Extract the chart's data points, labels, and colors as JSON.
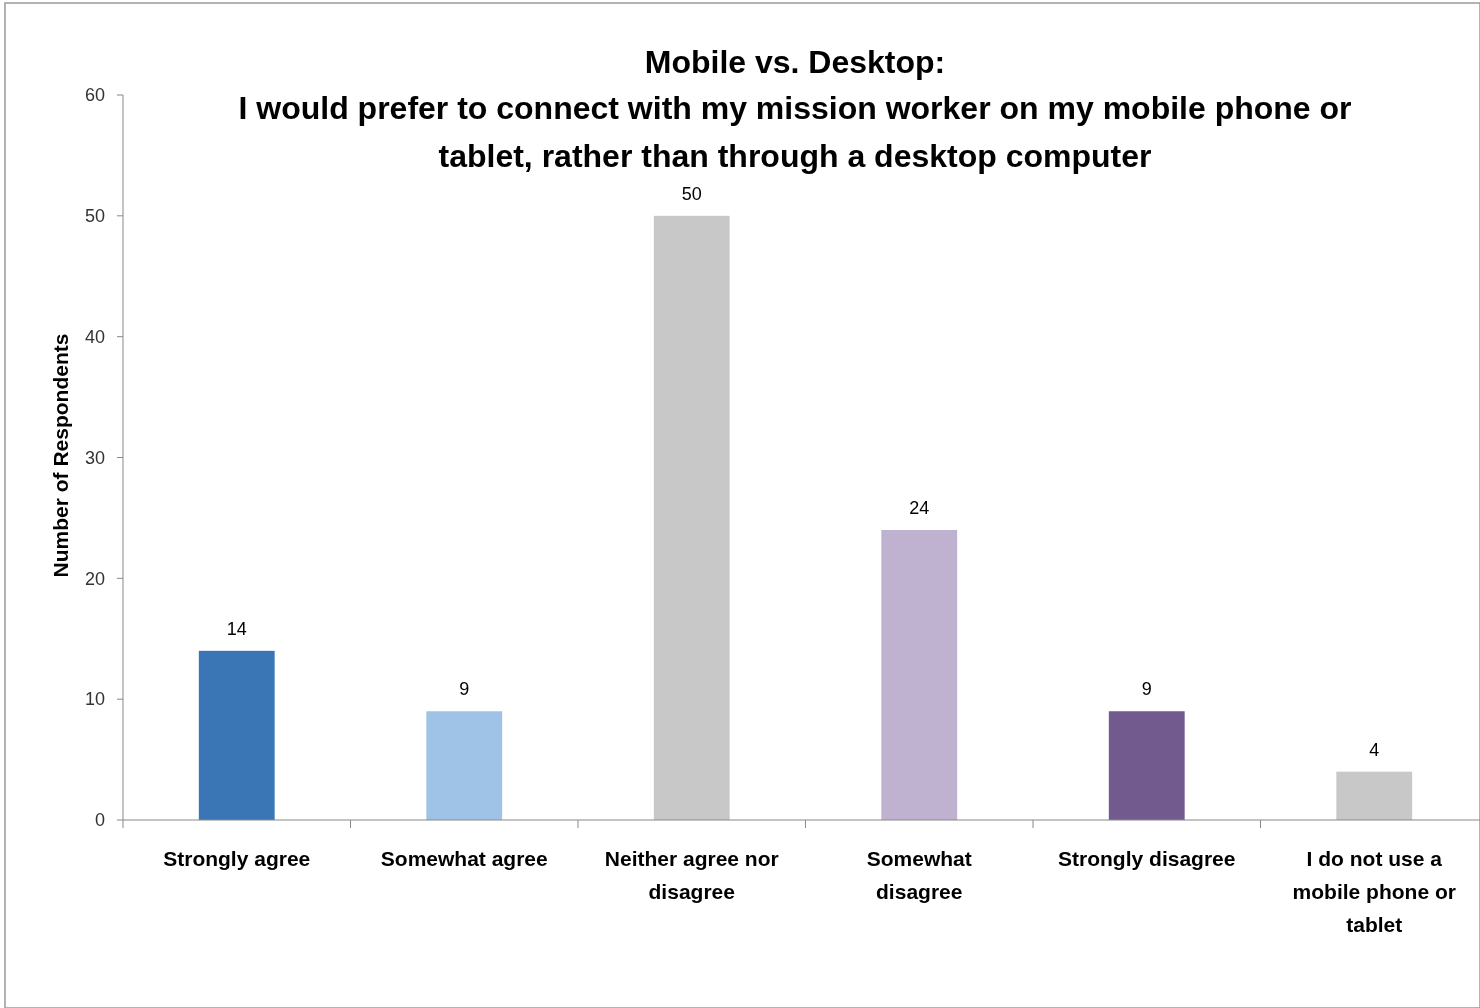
{
  "chart_data": {
    "type": "bar",
    "title": "Mobile vs. Desktop:",
    "subtitle": "I would prefer to connect with my mission worker on my mobile phone or tablet, rather than through a desktop computer",
    "ylabel": "Number of Respondents",
    "categories": [
      "Strongly agree",
      "Somewhat agree",
      "Neither agree nor disagree",
      "Somewhat disagree",
      "Strongly disagree",
      "I do not use a mobile phone or tablet"
    ],
    "values": [
      14,
      9,
      50,
      24,
      9,
      4
    ],
    "colors": [
      "#3a76b5",
      "#9fc3e7",
      "#c8c8c8",
      "#bfb1d0",
      "#735a8e",
      "#c8c8c8"
    ],
    "ylim": [
      0,
      60
    ],
    "yticks": [
      0,
      10,
      20,
      30,
      40,
      50,
      60
    ],
    "grid": false,
    "data_labels": true
  }
}
